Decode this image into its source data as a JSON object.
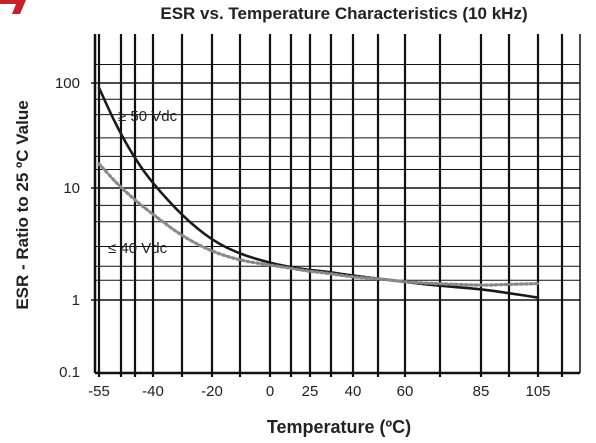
{
  "chart_data": {
    "type": "line",
    "title": "ESR vs. Temperature Characteristics (10 kHz)",
    "xlabel": "Temperature (ºC)",
    "ylabel": "ESR - Ratio to 25 ºC Value",
    "x_ticks": [
      "-55",
      "-40",
      "-20",
      "0",
      "25",
      "40",
      "60",
      "85",
      "105"
    ],
    "y_ticks": [
      "100",
      "10",
      "1",
      "0.1"
    ],
    "y_scale": "log",
    "ylim": [
      0.1,
      200
    ],
    "grid": true,
    "series": [
      {
        "name": "≥ 50 Vdc",
        "style": "solid",
        "color": "#1a1a1a",
        "x": [
          -55,
          -50,
          -45,
          -40,
          -30,
          -20,
          -10,
          0,
          10,
          20,
          25,
          30,
          40,
          50,
          60,
          70,
          85,
          95,
          105
        ],
        "y": [
          90,
          38,
          19,
          11,
          5.6,
          3.4,
          2.55,
          2.15,
          2.0,
          1.9,
          1.85,
          1.8,
          1.65,
          1.55,
          1.45,
          1.35,
          1.25,
          1.15,
          1.05
        ]
      },
      {
        "name": "≤ 40 Vdc",
        "style": "dotted",
        "color": "#888888",
        "x": [
          -55,
          -50,
          -45,
          -40,
          -30,
          -20,
          -10,
          0,
          10,
          20,
          25,
          30,
          40,
          50,
          60,
          70,
          85,
          95,
          105
        ],
        "y": [
          17,
          11,
          7.8,
          5.8,
          3.7,
          2.7,
          2.25,
          2.05,
          1.95,
          1.85,
          1.8,
          1.75,
          1.6,
          1.55,
          1.45,
          1.4,
          1.35,
          1.38,
          1.4
        ]
      }
    ]
  },
  "colors": {
    "logo_red": "#c8202a",
    "grid": "#111111",
    "curve_solid": "#1a1a1a",
    "curve_dotted": "#888888"
  }
}
